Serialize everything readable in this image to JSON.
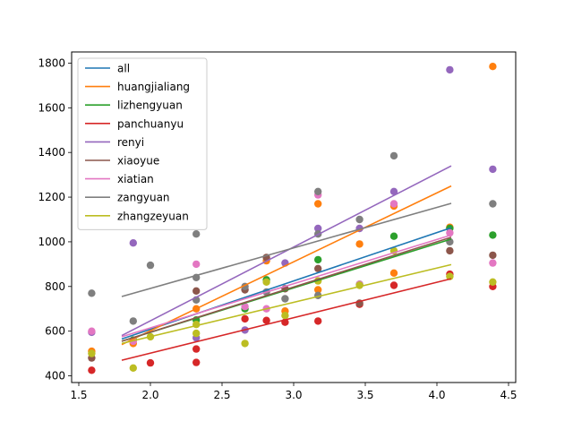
{
  "chart_data": {
    "type": "scatter",
    "title": "",
    "xlabel": "",
    "ylabel": "",
    "xlim": [
      1.45,
      4.55
    ],
    "ylim": [
      370,
      1850
    ],
    "xticks": [
      1.5,
      2.0,
      2.5,
      3.0,
      3.5,
      4.0,
      4.5
    ],
    "xtick_labels": [
      "1.5",
      "2.0",
      "2.5",
      "3.0",
      "3.5",
      "4.0",
      "4.5"
    ],
    "yticks": [
      400,
      600,
      800,
      1000,
      1200,
      1400,
      1600,
      1800
    ],
    "ytick_labels": [
      "400",
      "600",
      "800",
      "1000",
      "1200",
      "1400",
      "1600",
      "1800"
    ],
    "grid": false,
    "legend_position": "upper-left",
    "series": [
      {
        "name": "all",
        "color": "#1f77b4",
        "fit": [
          [
            1.8,
            565
          ],
          [
            4.1,
            1063
          ]
        ],
        "points": []
      },
      {
        "name": "huangjialiang",
        "color": "#ff7f0e",
        "fit": [
          [
            1.8,
            540
          ],
          [
            4.1,
            1250
          ]
        ],
        "points": [
          [
            1.59,
            510
          ],
          [
            1.88,
            545
          ],
          [
            2.32,
            700
          ],
          [
            2.81,
            915
          ],
          [
            2.94,
            690
          ],
          [
            3.17,
            1170
          ],
          [
            3.17,
            785
          ],
          [
            3.46,
            990
          ],
          [
            3.7,
            860
          ],
          [
            3.7,
            1160
          ],
          [
            4.09,
            1065
          ],
          [
            4.39,
            1785
          ]
        ]
      },
      {
        "name": "lizhengyuan",
        "color": "#2ca02c",
        "fit": [
          [
            1.8,
            555
          ],
          [
            4.1,
            1012
          ]
        ],
        "points": [
          [
            1.88,
            560
          ],
          [
            2.32,
            650
          ],
          [
            2.66,
            700
          ],
          [
            2.81,
            830
          ],
          [
            3.17,
            920
          ],
          [
            3.46,
            810
          ],
          [
            3.7,
            1025
          ],
          [
            4.09,
            1060
          ],
          [
            4.39,
            1030
          ]
        ]
      },
      {
        "name": "panchuanyu",
        "color": "#d62728",
        "fit": [
          [
            1.8,
            470
          ],
          [
            4.1,
            835
          ]
        ],
        "points": [
          [
            1.59,
            425
          ],
          [
            2.0,
            458
          ],
          [
            2.32,
            460
          ],
          [
            2.32,
            520
          ],
          [
            2.66,
            655
          ],
          [
            2.81,
            648
          ],
          [
            2.94,
            640
          ],
          [
            3.17,
            645
          ],
          [
            3.46,
            720
          ],
          [
            3.7,
            805
          ],
          [
            4.09,
            855
          ],
          [
            4.39,
            800
          ]
        ]
      },
      {
        "name": "renyi",
        "color": "#9467bd",
        "fit": [
          [
            1.8,
            580
          ],
          [
            4.1,
            1340
          ]
        ],
        "points": [
          [
            1.59,
            595
          ],
          [
            1.88,
            995
          ],
          [
            2.32,
            570
          ],
          [
            2.66,
            605
          ],
          [
            2.94,
            905
          ],
          [
            3.17,
            1060
          ],
          [
            3.46,
            1060
          ],
          [
            3.7,
            1225
          ],
          [
            4.09,
            1770
          ],
          [
            4.39,
            1325
          ]
        ]
      },
      {
        "name": "xiaoyue",
        "color": "#8c564b",
        "fit": [
          [
            1.8,
            555
          ],
          [
            4.1,
            1020
          ]
        ],
        "points": [
          [
            1.59,
            480
          ],
          [
            2.32,
            780
          ],
          [
            2.66,
            785
          ],
          [
            2.81,
            930
          ],
          [
            2.94,
            790
          ],
          [
            3.17,
            880
          ],
          [
            3.46,
            725
          ],
          [
            4.09,
            960
          ],
          [
            4.39,
            940
          ]
        ]
      },
      {
        "name": "xiatian",
        "color": "#e377c2",
        "fit": [
          [
            1.8,
            575
          ],
          [
            4.1,
            1030
          ]
        ],
        "points": [
          [
            1.59,
            600
          ],
          [
            1.88,
            555
          ],
          [
            2.32,
            900
          ],
          [
            2.66,
            710
          ],
          [
            2.81,
            700
          ],
          [
            3.17,
            1210
          ],
          [
            3.46,
            810
          ],
          [
            3.7,
            1170
          ],
          [
            4.09,
            1040
          ],
          [
            4.39,
            905
          ]
        ]
      },
      {
        "name": "zangyuan",
        "color": "#7f7f7f",
        "fit": [
          [
            1.8,
            755
          ],
          [
            4.1,
            1172
          ]
        ],
        "points": [
          [
            1.59,
            770
          ],
          [
            1.88,
            645
          ],
          [
            2.0,
            895
          ],
          [
            2.32,
            1035
          ],
          [
            2.32,
            840
          ],
          [
            2.32,
            740
          ],
          [
            2.66,
            800
          ],
          [
            2.81,
            775
          ],
          [
            2.94,
            745
          ],
          [
            3.17,
            1225
          ],
          [
            3.17,
            1035
          ],
          [
            3.17,
            760
          ],
          [
            3.46,
            1100
          ],
          [
            3.7,
            1385
          ],
          [
            4.09,
            1000
          ],
          [
            4.39,
            1170
          ]
        ]
      },
      {
        "name": "zhangzeyuan",
        "color": "#bcbd22",
        "fit": [
          [
            1.8,
            545
          ],
          [
            4.1,
            898
          ]
        ],
        "points": [
          [
            1.59,
            500
          ],
          [
            1.88,
            435
          ],
          [
            2.0,
            575
          ],
          [
            2.32,
            590
          ],
          [
            2.32,
            630
          ],
          [
            2.66,
            545
          ],
          [
            2.81,
            820
          ],
          [
            2.94,
            670
          ],
          [
            3.17,
            825
          ],
          [
            3.46,
            805
          ],
          [
            3.7,
            960
          ],
          [
            4.09,
            845
          ],
          [
            4.39,
            820
          ]
        ]
      }
    ]
  }
}
